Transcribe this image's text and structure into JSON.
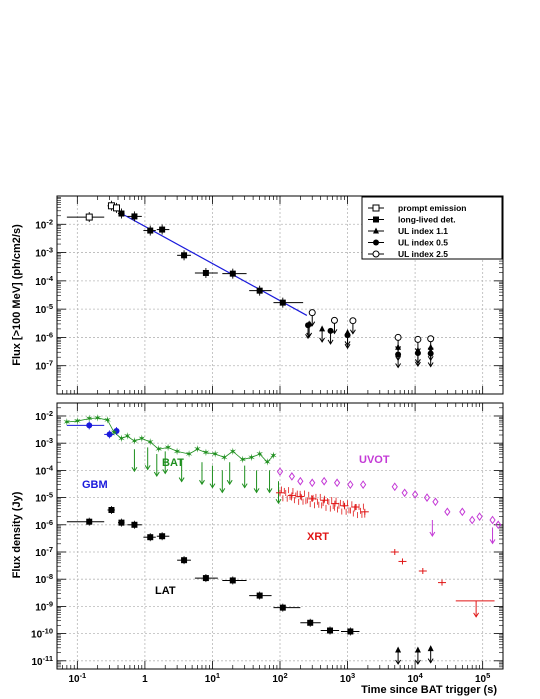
{
  "chart_data": [
    {
      "type": "scatter",
      "panel": "top",
      "ylabel": "Flux [>100 MeV] (ph/cm2/s)",
      "xscale": "log",
      "yscale": "log",
      "xlim": [
        0.05,
        200000
      ],
      "ylim": [
        1e-08,
        0.1
      ],
      "grid": true,
      "legend_position": "top-right",
      "legend": [
        "prompt emission",
        "long-lived det.",
        "UL index 1.1",
        "UL index 0.5",
        "UL index 2.5"
      ],
      "x_tick_labels": [
        "10^-1",
        "1",
        "10",
        "10^2",
        "10^3",
        "10^4",
        "10^5"
      ],
      "y_tick_labels": [
        "10^-7",
        "10^-6",
        "10^-5",
        "10^-4",
        "10^-3",
        "10^-2"
      ],
      "series": [
        {
          "name": "prompt emission",
          "marker": "open-square",
          "color": "#000000",
          "points": [
            {
              "x": 0.15,
              "y": 0.018,
              "xlo": 0.07,
              "xhi": 0.25
            },
            {
              "x": 0.32,
              "y": 0.045,
              "xlo": 0.28,
              "xhi": 0.36
            },
            {
              "x": 0.38,
              "y": 0.038,
              "xlo": 0.35,
              "xhi": 0.41
            }
          ]
        },
        {
          "name": "long-lived det.",
          "marker": "filled-square",
          "color": "#000000",
          "points": [
            {
              "x": 0.45,
              "y": 0.024,
              "xlo": 0.4,
              "xhi": 0.5
            },
            {
              "x": 0.7,
              "y": 0.019,
              "xlo": 0.55,
              "xhi": 0.9
            },
            {
              "x": 1.2,
              "y": 0.006,
              "xlo": 0.95,
              "xhi": 1.45
            },
            {
              "x": 1.8,
              "y": 0.0065,
              "xlo": 1.5,
              "xhi": 2.3
            },
            {
              "x": 3.8,
              "y": 0.0008,
              "xlo": 3,
              "xhi": 4.8
            },
            {
              "x": 8,
              "y": 0.00019,
              "xlo": 5.5,
              "xhi": 12
            },
            {
              "x": 20,
              "y": 0.00018,
              "xlo": 14,
              "xhi": 32
            },
            {
              "x": 50,
              "y": 4.5e-05,
              "xlo": 35,
              "xhi": 75
            },
            {
              "x": 110,
              "y": 1.7e-05,
              "xlo": 80,
              "xhi": 220
            }
          ]
        },
        {
          "name": "UL index 1.1",
          "marker": "filled-triangle",
          "color": "#000000",
          "points": [
            {
              "x": 270,
              "y": 3e-06
            },
            {
              "x": 420,
              "y": 2e-06
            },
            {
              "x": 1000,
              "y": 1.5e-06
            },
            {
              "x": 5600,
              "y": 4.5e-07
            },
            {
              "x": 11000,
              "y": 3.5e-07
            },
            {
              "x": 17000,
              "y": 4.5e-07
            }
          ]
        },
        {
          "name": "UL index 0.5",
          "marker": "filled-circle",
          "color": "#000000",
          "points": [
            {
              "x": 260,
              "y": 2.7e-06
            },
            {
              "x": 560,
              "y": 1.7e-06
            },
            {
              "x": 1000,
              "y": 1.2e-06
            },
            {
              "x": 5600,
              "y": 2.5e-07
            },
            {
              "x": 11000,
              "y": 2.8e-07
            },
            {
              "x": 17000,
              "y": 2.7e-07
            }
          ]
        },
        {
          "name": "UL index 2.5",
          "marker": "open-circle",
          "color": "#000000",
          "points": [
            {
              "x": 300,
              "y": 7.5e-06
            },
            {
              "x": 640,
              "y": 4e-06
            },
            {
              "x": 1200,
              "y": 3.9e-06
            },
            {
              "x": 5600,
              "y": 1e-06
            },
            {
              "x": 11000,
              "y": 8.5e-07
            },
            {
              "x": 17000,
              "y": 9e-07
            }
          ]
        }
      ],
      "fit_line": {
        "x": [
          0.45,
          250
        ],
        "y": [
          0.024,
          6e-06
        ],
        "color": "#1a1adc"
      }
    },
    {
      "type": "scatter",
      "panel": "bottom",
      "xlabel": "Time since BAT trigger (s)",
      "ylabel": "Flux density (Jy)",
      "xscale": "log",
      "yscale": "log",
      "xlim": [
        0.05,
        200000
      ],
      "ylim": [
        5e-12,
        0.03
      ],
      "grid": true,
      "x_tick_labels": [
        "10^-1",
        "1",
        "10",
        "10^2",
        "10^3",
        "10^4",
        "10^5"
      ],
      "y_tick_labels": [
        "10^-11",
        "10^-10",
        "10^-9",
        "10^-8",
        "10^-7",
        "10^-6",
        "10^-5",
        "10^-4",
        "10^-3",
        "10^-2"
      ],
      "annotations": [
        {
          "text": "BAT",
          "color": "#1e8f1e"
        },
        {
          "text": "GBM",
          "color": "#1a1adc"
        },
        {
          "text": "UVOT",
          "color": "#c43ad6"
        },
        {
          "text": "XRT",
          "color": "#e01515"
        },
        {
          "text": "LAT",
          "color": "#000000"
        }
      ],
      "series": [
        {
          "name": "GBM",
          "marker": "filled-circle",
          "color": "#1a1adc",
          "points": [
            {
              "x": 0.15,
              "y": 0.0045,
              "xlo": 0.07,
              "xhi": 0.25
            },
            {
              "x": 0.3,
              "y": 0.0021,
              "xlo": 0.25,
              "xhi": 0.35
            },
            {
              "x": 0.38,
              "y": 0.0028,
              "xlo": 0.35,
              "xhi": 0.41
            }
          ]
        },
        {
          "name": "BAT",
          "marker": "star",
          "color": "#1e8f1e",
          "points": [
            {
              "x": 0.07,
              "y": 0.006
            },
            {
              "x": 0.1,
              "y": 0.0065
            },
            {
              "x": 0.15,
              "y": 0.008
            },
            {
              "x": 0.2,
              "y": 0.0085
            },
            {
              "x": 0.28,
              "y": 0.007
            },
            {
              "x": 0.35,
              "y": 0.0025
            },
            {
              "x": 0.45,
              "y": 0.0015
            },
            {
              "x": 0.55,
              "y": 0.0018
            },
            {
              "x": 0.7,
              "y": 0.0012
            },
            {
              "x": 0.9,
              "y": 0.0015
            },
            {
              "x": 1.2,
              "y": 0.0011
            },
            {
              "x": 1.6,
              "y": 0.0006
            },
            {
              "x": 2.2,
              "y": 0.0007
            },
            {
              "x": 3,
              "y": 0.0005
            },
            {
              "x": 4.5,
              "y": 0.0004
            },
            {
              "x": 6,
              "y": 0.0006
            },
            {
              "x": 8,
              "y": 0.00045
            },
            {
              "x": 11,
              "y": 0.0004
            },
            {
              "x": 15,
              "y": 0.0003
            },
            {
              "x": 20,
              "y": 0.0005
            },
            {
              "x": 28,
              "y": 0.00025
            },
            {
              "x": 38,
              "y": 0.0003
            },
            {
              "x": 50,
              "y": 0.0004
            },
            {
              "x": 65,
              "y": 0.0002
            },
            {
              "x": 80,
              "y": 0.00035
            }
          ]
        },
        {
          "name": "BAT upper limits",
          "marker": "arrow",
          "color": "#1e8f1e",
          "points": [
            {
              "x": 0.7,
              "y": 0.0006
            },
            {
              "x": 1.1,
              "y": 0.0007
            },
            {
              "x": 1.5,
              "y": 0.0004
            },
            {
              "x": 2,
              "y": 0.0005
            },
            {
              "x": 3.5,
              "y": 0.00025
            },
            {
              "x": 7,
              "y": 0.0002
            },
            {
              "x": 10,
              "y": 0.00015
            },
            {
              "x": 14,
              "y": 0.0001
            },
            {
              "x": 18,
              "y": 0.0002
            },
            {
              "x": 30,
              "y": 0.00015
            },
            {
              "x": 45,
              "y": 0.0001
            },
            {
              "x": 70,
              "y": 0.0001
            },
            {
              "x": 95,
              "y": 4e-05
            }
          ]
        },
        {
          "name": "XRT",
          "marker": "segment",
          "color": "#e01515",
          "points": [
            {
              "x": 100,
              "y": 1.5e-05
            },
            {
              "x": 150,
              "y": 1.2e-05
            },
            {
              "x": 200,
              "y": 1.1e-05
            },
            {
              "x": 300,
              "y": 9e-06
            },
            {
              "x": 450,
              "y": 8e-06
            },
            {
              "x": 650,
              "y": 6e-06
            },
            {
              "x": 900,
              "y": 5e-06
            },
            {
              "x": 1300,
              "y": 4.5e-06
            },
            {
              "x": 1800,
              "y": 3e-06
            },
            {
              "x": 5000,
              "y": 1e-07
            },
            {
              "x": 6500,
              "y": 4.5e-08
            },
            {
              "x": 13000,
              "y": 2e-08
            },
            {
              "x": 25000,
              "y": 7.5e-09
            }
          ]
        },
        {
          "name": "XRT upper limit",
          "marker": "arrow",
          "color": "#e01515",
          "points": [
            {
              "x": 80000,
              "y": 1.6e-09,
              "xlo": 40000,
              "xhi": 150000
            }
          ]
        },
        {
          "name": "UVOT",
          "marker": "open-diamond",
          "color": "#c43ad6",
          "points": [
            {
              "x": 100,
              "y": 9e-05
            },
            {
              "x": 150,
              "y": 6e-05
            },
            {
              "x": 200,
              "y": 4e-05
            },
            {
              "x": 300,
              "y": 3.5e-05
            },
            {
              "x": 450,
              "y": 4e-05
            },
            {
              "x": 700,
              "y": 3.5e-05
            },
            {
              "x": 1100,
              "y": 3e-05
            },
            {
              "x": 1700,
              "y": 3e-05
            },
            {
              "x": 5000,
              "y": 2.5e-05
            },
            {
              "x": 7000,
              "y": 1.5e-05
            },
            {
              "x": 10000,
              "y": 1.3e-05
            },
            {
              "x": 15000,
              "y": 1e-05
            },
            {
              "x": 20000,
              "y": 7e-06
            },
            {
              "x": 30000,
              "y": 3e-06
            },
            {
              "x": 50000,
              "y": 3e-06
            },
            {
              "x": 70000,
              "y": 1.5e-06
            },
            {
              "x": 90000,
              "y": 2e-06
            },
            {
              "x": 140000,
              "y": 1.5e-06
            },
            {
              "x": 170000,
              "y": 1e-06
            }
          ]
        },
        {
          "name": "UVOT upper limits",
          "marker": "arrow",
          "color": "#c43ad6",
          "points": [
            {
              "x": 18000,
              "y": 1.5e-06
            },
            {
              "x": 140000,
              "y": 8e-07
            }
          ]
        },
        {
          "name": "LAT",
          "marker": "filled-square",
          "color": "#000000",
          "points": [
            {
              "x": 0.15,
              "y": 1.3e-06,
              "xlo": 0.07,
              "xhi": 0.25
            },
            {
              "x": 0.32,
              "y": 3.5e-06,
              "xlo": 0.28,
              "xhi": 0.36
            },
            {
              "x": 0.45,
              "y": 1.2e-06,
              "xlo": 0.4,
              "xhi": 0.5
            },
            {
              "x": 0.7,
              "y": 1e-06,
              "xlo": 0.55,
              "xhi": 0.9
            },
            {
              "x": 1.2,
              "y": 3.5e-07,
              "xlo": 0.95,
              "xhi": 1.45
            },
            {
              "x": 1.8,
              "y": 3.8e-07,
              "xlo": 1.5,
              "xhi": 2.3
            },
            {
              "x": 3.8,
              "y": 5e-08,
              "xlo": 3,
              "xhi": 4.8
            },
            {
              "x": 8,
              "y": 1.1e-08,
              "xlo": 5.5,
              "xhi": 12
            },
            {
              "x": 20,
              "y": 9e-09,
              "xlo": 14,
              "xhi": 32
            },
            {
              "x": 50,
              "y": 2.5e-09,
              "xlo": 35,
              "xhi": 75
            },
            {
              "x": 110,
              "y": 9e-10,
              "xlo": 80,
              "xhi": 200
            },
            {
              "x": 280,
              "y": 2.5e-10,
              "xlo": 200,
              "xhi": 400
            },
            {
              "x": 550,
              "y": 1.3e-10,
              "xlo": 400,
              "xhi": 750
            },
            {
              "x": 1100,
              "y": 1.2e-10,
              "xlo": 800,
              "xhi": 1500
            }
          ]
        },
        {
          "name": "LAT upper limits",
          "marker": "filled-triangle",
          "color": "#000000",
          "points": [
            {
              "x": 5600,
              "y": 2.5e-11
            },
            {
              "x": 11000,
              "y": 2.5e-11
            },
            {
              "x": 17000,
              "y": 2.8e-11
            }
          ]
        }
      ]
    }
  ]
}
